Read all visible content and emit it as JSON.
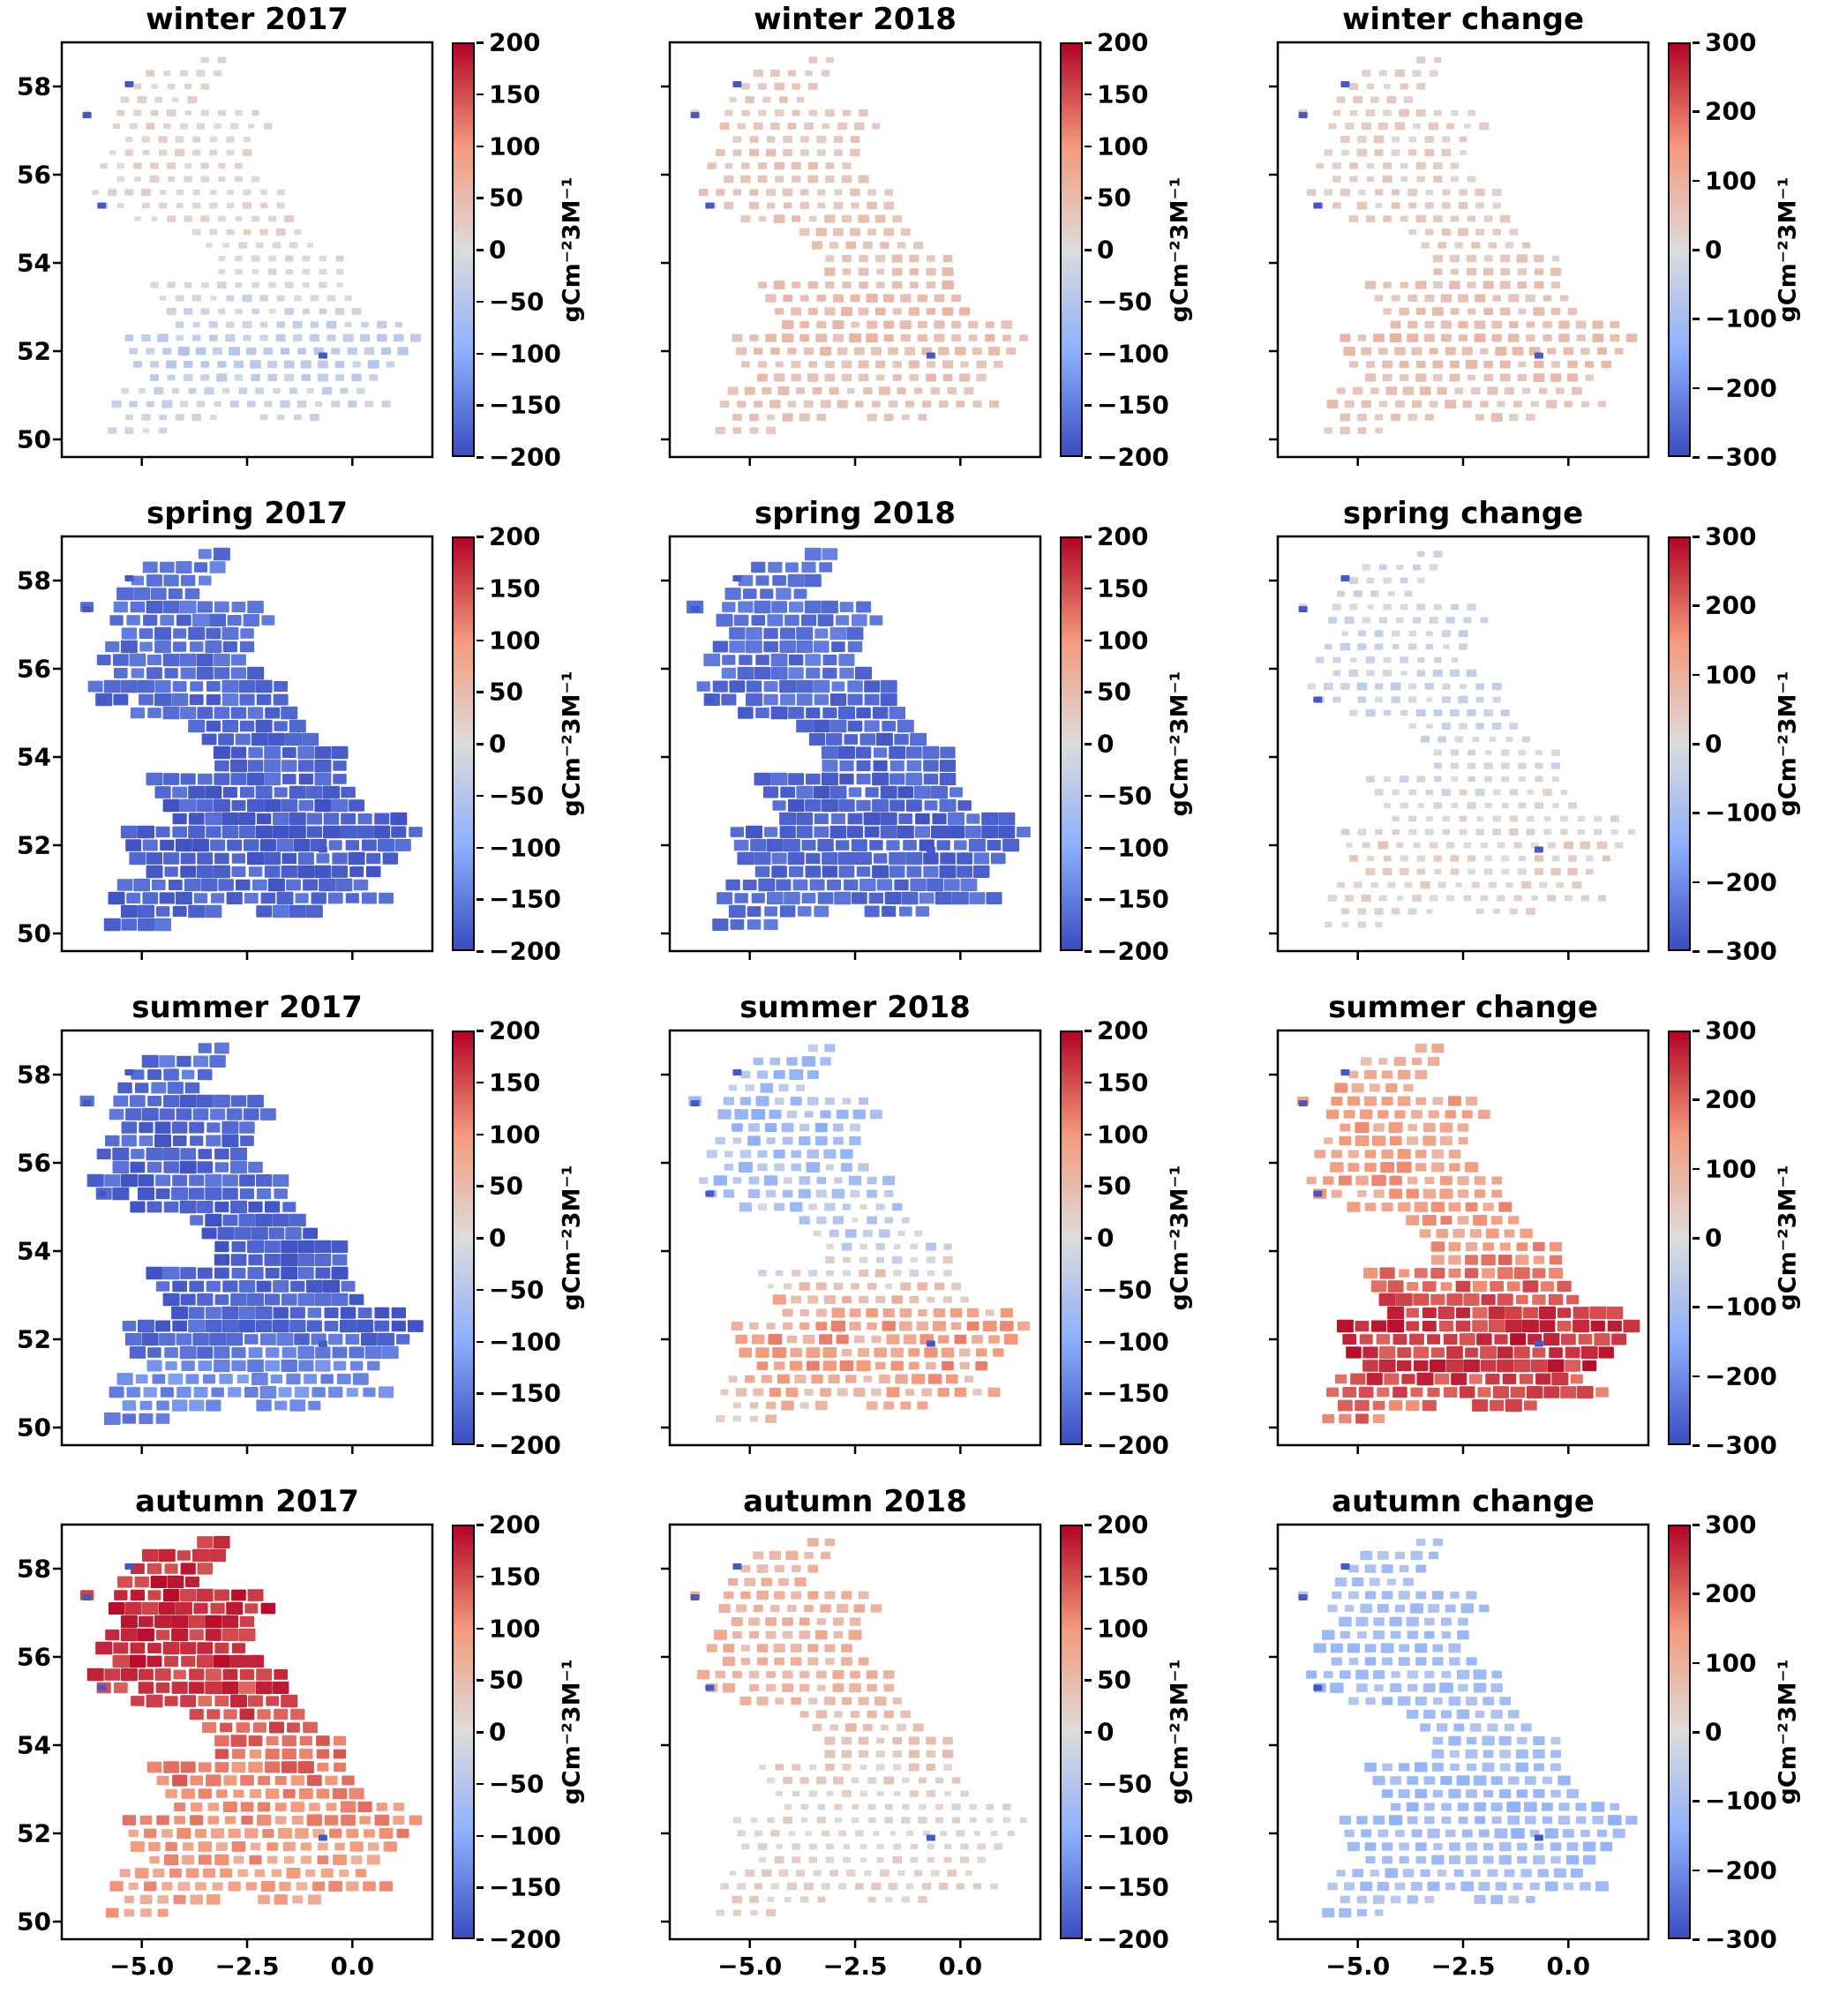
{
  "chart_data": {
    "type": "heatmap",
    "title": "",
    "unit_label": "gCm⁻²3M⁻¹",
    "x_axis": {
      "label": "",
      "ticks": [
        "−5.0",
        "−2.5",
        "0.0"
      ],
      "tick_values": [
        -5.0,
        -2.5,
        0.0
      ],
      "range": [
        -6.9,
        1.9
      ]
    },
    "y_axis": {
      "label": "",
      "ticks": [
        "58",
        "56",
        "54",
        "52",
        "50"
      ],
      "tick_values": [
        58,
        56,
        54,
        52,
        50
      ],
      "range": [
        49.6,
        59.0
      ]
    },
    "colormap": {
      "name": "coolwarm",
      "stops": [
        [
          0.0,
          "#3b4cc0"
        ],
        [
          0.25,
          "#8caffe"
        ],
        [
          0.5,
          "#dddcdc"
        ],
        [
          0.75,
          "#f49a7b"
        ],
        [
          1.0,
          "#b40426"
        ]
      ]
    },
    "colorbars": {
      "absolute": {
        "vmax": 200,
        "ticks": [
          "200",
          "150",
          "100",
          "50",
          "0",
          "−50",
          "−100",
          "−150",
          "−200"
        ]
      },
      "change": {
        "vmax": 300,
        "ticks": [
          "300",
          "200",
          "100",
          "0",
          "−100",
          "−200",
          "−300"
        ]
      }
    },
    "grid": {
      "lon_step": 0.4,
      "lat_step": 0.3,
      "rows": [
        [
          58.6,
          [
            [
              -3.5,
              -3.1
            ]
          ]
        ],
        [
          58.3,
          [
            [
              -4.8,
              -3.1
            ]
          ]
        ],
        [
          58.0,
          [
            [
              -5.1,
              -3.3
            ]
          ]
        ],
        [
          57.7,
          [
            [
              -5.4,
              -3.5
            ]
          ]
        ],
        [
          57.4,
          [
            [
              -6.3,
              -6.1
            ],
            [
              -5.5,
              -2.1
            ]
          ]
        ],
        [
          57.1,
          [
            [
              -5.6,
              -2.0
            ]
          ]
        ],
        [
          56.8,
          [
            [
              -5.3,
              -2.2
            ]
          ]
        ],
        [
          56.5,
          [
            [
              -5.7,
              -2.5
            ]
          ]
        ],
        [
          56.2,
          [
            [
              -5.9,
              -2.7
            ]
          ]
        ],
        [
          55.9,
          [
            [
              -5.5,
              -2.3
            ]
          ]
        ],
        [
          55.6,
          [
            [
              -6.1,
              -1.7
            ]
          ]
        ],
        [
          55.3,
          [
            [
              -5.9,
              -5.5
            ],
            [
              -4.9,
              -1.5
            ]
          ]
        ],
        [
          55.0,
          [
            [
              -5.1,
              -1.3
            ]
          ]
        ],
        [
          54.7,
          [
            [
              -3.7,
              -1.1
            ]
          ]
        ],
        [
          54.4,
          [
            [
              -3.4,
              -0.7
            ]
          ]
        ],
        [
          54.1,
          [
            [
              -3.1,
              -0.3
            ]
          ]
        ],
        [
          53.8,
          [
            [
              -3.1,
              0.0
            ]
          ]
        ],
        [
          53.5,
          [
            [
              -4.7,
              -0.1
            ]
          ]
        ],
        [
          53.2,
          [
            [
              -4.5,
              0.2
            ]
          ]
        ],
        [
          52.9,
          [
            [
              -4.3,
              0.4
            ]
          ]
        ],
        [
          52.6,
          [
            [
              -4.1,
              1.3
            ]
          ]
        ],
        [
          52.3,
          [
            [
              -5.3,
              1.7
            ]
          ]
        ],
        [
          52.0,
          [
            [
              -5.2,
              1.4
            ]
          ]
        ],
        [
          51.7,
          [
            [
              -5.1,
              1.2
            ]
          ]
        ],
        [
          51.4,
          [
            [
              -4.7,
              0.8
            ]
          ]
        ],
        [
          51.1,
          [
            [
              -5.4,
              0.4
            ]
          ]
        ],
        [
          50.8,
          [
            [
              -5.6,
              1.0
            ]
          ]
        ],
        [
          50.5,
          [
            [
              -5.3,
              -3.0
            ],
            [
              -2.1,
              -0.9
            ]
          ]
        ],
        [
          50.2,
          [
            [
              -5.7,
              -4.5
            ]
          ]
        ]
      ],
      "outlier_cells": [
        [
          57.35,
          -6.3
        ],
        [
          55.3,
          -5.95
        ],
        [
          51.9,
          -0.7
        ],
        [
          58.05,
          -5.3
        ]
      ]
    },
    "panels": [
      {
        "id": "winter-2017",
        "title": "winter 2017",
        "scale": "absolute",
        "seed": 11,
        "jitter": 16,
        "mean_value_by_lat": [
          [
            49.6,
            -5
          ],
          [
            51.0,
            -20
          ],
          [
            51.9,
            -40
          ],
          [
            52.8,
            -15
          ],
          [
            54.0,
            5
          ],
          [
            56.0,
            8
          ],
          [
            58.7,
            12
          ]
        ]
      },
      {
        "id": "winter-2018",
        "title": "winter 2018",
        "scale": "absolute",
        "seed": 22,
        "jitter": 14,
        "mean_value_by_lat": [
          [
            49.6,
            25
          ],
          [
            51.5,
            40
          ],
          [
            52.5,
            50
          ],
          [
            54.0,
            40
          ],
          [
            56.0,
            32
          ],
          [
            58.7,
            30
          ]
        ]
      },
      {
        "id": "winter-change",
        "title": "winter change",
        "scale": "change",
        "seed": 33,
        "jitter": 22,
        "mean_value_by_lat": [
          [
            49.6,
            35
          ],
          [
            51.5,
            60
          ],
          [
            52.5,
            70
          ],
          [
            54.0,
            45
          ],
          [
            56.0,
            30
          ],
          [
            58.7,
            25
          ]
        ]
      },
      {
        "id": "spring-2017",
        "title": "spring 2017",
        "scale": "absolute",
        "seed": 44,
        "jitter": 18,
        "mean_value_by_lat": [
          [
            49.6,
            -165
          ],
          [
            52.0,
            -180
          ],
          [
            55.0,
            -172
          ],
          [
            58.7,
            -158
          ]
        ]
      },
      {
        "id": "spring-2018",
        "title": "spring 2018",
        "scale": "absolute",
        "seed": 55,
        "jitter": 18,
        "mean_value_by_lat": [
          [
            49.6,
            -160
          ],
          [
            52.0,
            -176
          ],
          [
            55.0,
            -170
          ],
          [
            58.7,
            -152
          ]
        ]
      },
      {
        "id": "spring-change",
        "title": "spring change",
        "scale": "change",
        "seed": 66,
        "jitter": 30,
        "mean_value_by_lat": [
          [
            49.6,
            8
          ],
          [
            52.0,
            22
          ],
          [
            53.5,
            -5
          ],
          [
            55.0,
            -28
          ],
          [
            57.0,
            -18
          ],
          [
            58.7,
            -12
          ]
        ]
      },
      {
        "id": "summer-2017",
        "title": "summer 2017",
        "scale": "absolute",
        "seed": 77,
        "jitter": 20,
        "mean_value_by_lat": [
          [
            49.6,
            -150
          ],
          [
            51.2,
            -132
          ],
          [
            52.2,
            -176
          ],
          [
            54.0,
            -182
          ],
          [
            56.0,
            -172
          ],
          [
            58.7,
            -162
          ]
        ]
      },
      {
        "id": "summer-2018",
        "title": "summer 2018",
        "scale": "absolute",
        "seed": 88,
        "jitter": 38,
        "mean_value_by_lat": [
          [
            49.6,
            25
          ],
          [
            51.5,
            88
          ],
          [
            52.5,
            78
          ],
          [
            53.5,
            12
          ],
          [
            54.5,
            -32
          ],
          [
            55.5,
            -55
          ],
          [
            56.5,
            -66
          ],
          [
            58.7,
            -58
          ]
        ]
      },
      {
        "id": "summer-change",
        "title": "summer change",
        "scale": "change",
        "seed": 99,
        "jitter": 45,
        "mean_value_by_lat": [
          [
            49.6,
            155
          ],
          [
            51.5,
            252
          ],
          [
            52.5,
            248
          ],
          [
            53.5,
            175
          ],
          [
            54.5,
            135
          ],
          [
            56.0,
            122
          ],
          [
            58.7,
            112
          ]
        ]
      },
      {
        "id": "autumn-2017",
        "title": "autumn 2017",
        "scale": "absolute",
        "seed": 101,
        "jitter": 28,
        "mean_value_by_lat": [
          [
            49.6,
            78
          ],
          [
            51.5,
            92
          ],
          [
            52.5,
            108
          ],
          [
            54.0,
            128
          ],
          [
            55.5,
            168
          ],
          [
            57.0,
            178
          ],
          [
            58.7,
            172
          ]
        ]
      },
      {
        "id": "autumn-2018",
        "title": "autumn 2018",
        "scale": "absolute",
        "seed": 112,
        "jitter": 20,
        "mean_value_by_lat": [
          [
            49.6,
            28
          ],
          [
            51.5,
            8
          ],
          [
            52.5,
            2
          ],
          [
            54.0,
            32
          ],
          [
            55.5,
            55
          ],
          [
            57.0,
            62
          ],
          [
            58.7,
            56
          ]
        ]
      },
      {
        "id": "autumn-change",
        "title": "autumn change",
        "scale": "change",
        "seed": 123,
        "jitter": 30,
        "mean_value_by_lat": [
          [
            49.6,
            -78
          ],
          [
            51.5,
            -102
          ],
          [
            52.5,
            -118
          ],
          [
            54.0,
            -95
          ],
          [
            56.0,
            -102
          ],
          [
            58.7,
            -92
          ]
        ]
      }
    ]
  }
}
